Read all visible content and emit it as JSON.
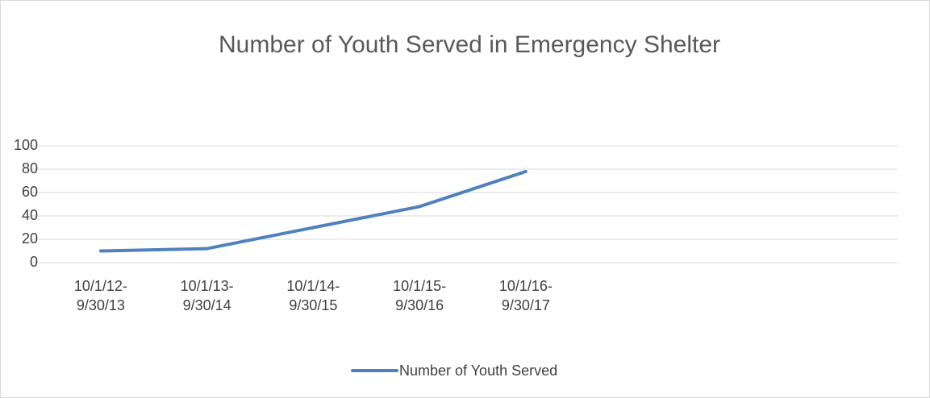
{
  "chart_data": {
    "type": "line",
    "title": "Number of Youth Served in Emergency Shelter",
    "categories": [
      "10/1/12-9/30/13",
      "10/1/13-9/30/14",
      "10/1/14-9/30/15",
      "10/1/15-9/30/16",
      "10/1/16-9/30/17",
      null,
      null,
      null
    ],
    "series": [
      {
        "name": "Number of Youth Served",
        "color": "#4f81bd",
        "values": [
          10,
          12,
          30,
          48,
          78,
          null,
          null,
          null
        ]
      }
    ],
    "ylim": [
      0,
      100
    ],
    "yticks": [
      0,
      20,
      40,
      60,
      80,
      100
    ],
    "grid": true,
    "legend": "bottom"
  }
}
